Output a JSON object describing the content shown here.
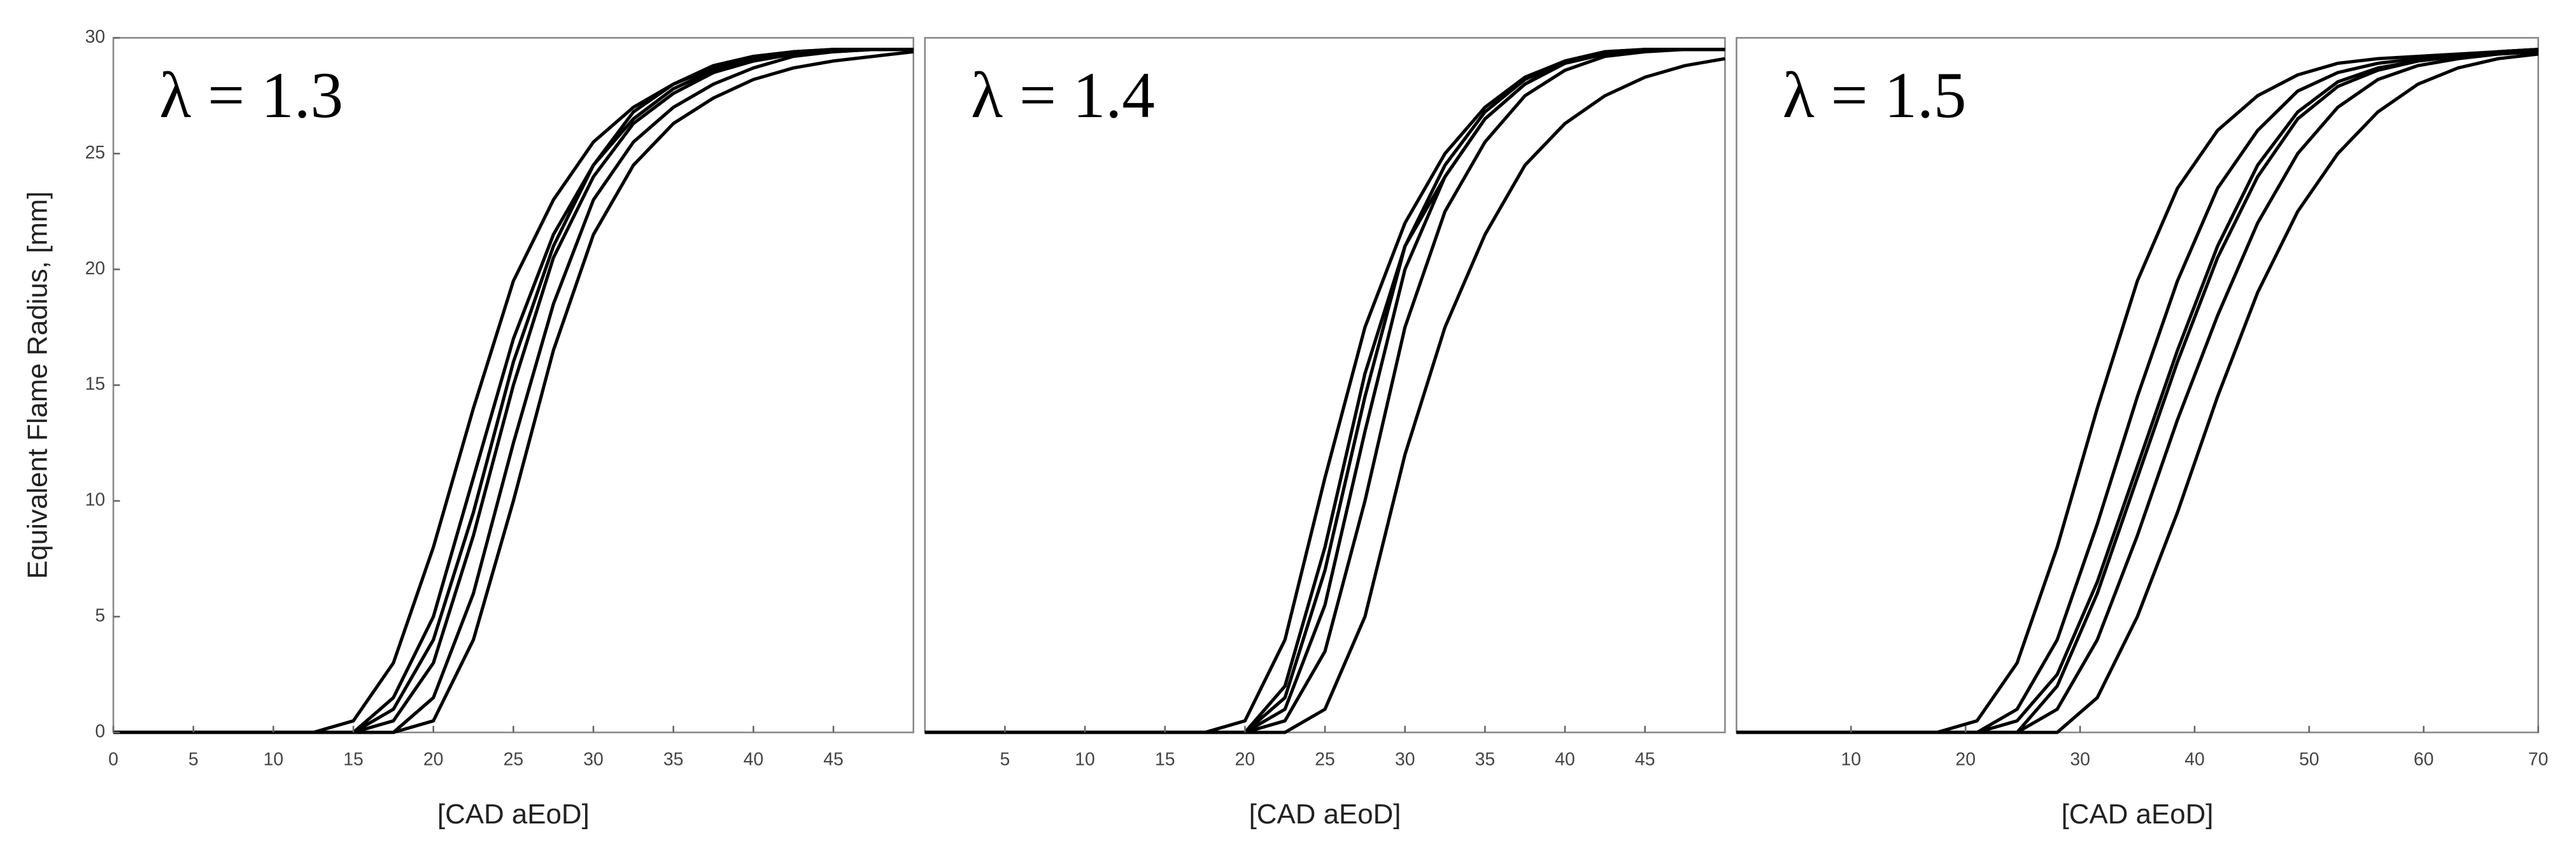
{
  "chart_data": [
    {
      "type": "line",
      "annotation": "λ = 1.3",
      "xlabel": "[CAD aEoD]",
      "ylabel": "Equivalent Flame Radius, [mm]",
      "x": [
        0,
        2.5,
        5,
        7.5,
        10,
        12.5,
        15,
        17.5,
        20,
        22.5,
        25,
        27.5,
        30,
        32.5,
        35,
        37.5,
        40,
        42.5,
        45,
        47.5,
        50
      ],
      "xlim": [
        0,
        50
      ],
      "xticks": [
        0,
        5,
        10,
        15,
        20,
        25,
        30,
        35,
        40,
        45
      ],
      "ylim": [
        0,
        30
      ],
      "yticks": [
        0,
        5,
        10,
        15,
        20,
        25,
        30
      ],
      "grid": false,
      "series": [
        {
          "color": "#000000",
          "values": [
            0,
            0,
            0,
            0,
            0,
            0,
            0.5,
            3,
            8,
            14,
            19.5,
            23,
            25.5,
            27,
            28,
            28.7,
            29.1,
            29.4,
            29.5,
            29.5,
            29.5
          ]
        },
        {
          "color": "#000000",
          "values": [
            0,
            0,
            0,
            0,
            0,
            0,
            0,
            1.5,
            5,
            11,
            17,
            21.5,
            24.5,
            26.5,
            27.8,
            28.6,
            29,
            29.3,
            29.4,
            29.5,
            29.5
          ]
        },
        {
          "color": "#000000",
          "values": [
            0,
            0,
            0,
            0,
            0,
            0,
            0,
            0.5,
            3,
            8.5,
            15,
            20.5,
            24,
            26.3,
            27.6,
            28.5,
            29,
            29.3,
            29.5,
            29.5,
            29.5
          ]
        },
        {
          "color": "#000000",
          "values": [
            0,
            0,
            0,
            0,
            0,
            0,
            0,
            0,
            1.5,
            6,
            12.5,
            18.5,
            23,
            25.5,
            27,
            28,
            28.7,
            29.2,
            29.4,
            29.5,
            29.5
          ]
        },
        {
          "color": "#000000",
          "values": [
            0,
            0,
            0,
            0,
            0,
            0,
            0,
            0,
            0.5,
            4,
            10,
            16.5,
            21.5,
            24.5,
            26.3,
            27.4,
            28.2,
            28.7,
            29,
            29.2,
            29.4
          ]
        },
        {
          "color": "#000000",
          "values": [
            0,
            0,
            0,
            0,
            0,
            0,
            0,
            1,
            4,
            9.5,
            16,
            21,
            24.5,
            26.8,
            28,
            28.8,
            29.2,
            29.4,
            29.5,
            29.5,
            29.5
          ]
        }
      ]
    },
    {
      "type": "line",
      "annotation": "λ = 1.4",
      "xlabel": "[CAD aEoD]",
      "x": [
        0,
        2.5,
        5,
        7.5,
        10,
        12.5,
        15,
        17.5,
        20,
        22.5,
        25,
        27.5,
        30,
        32.5,
        35,
        37.5,
        40,
        42.5,
        45,
        47.5,
        50
      ],
      "xlim": [
        0,
        50
      ],
      "xticks": [
        5,
        10,
        15,
        20,
        25,
        30,
        35,
        40,
        45
      ],
      "ylim": [
        0,
        30
      ],
      "grid": false,
      "series": [
        {
          "color": "#000000",
          "values": [
            0,
            0,
            0,
            0,
            0,
            0,
            0,
            0,
            0.5,
            4,
            11,
            17.5,
            22,
            25,
            27,
            28.3,
            29,
            29.3,
            29.5,
            29.5,
            29.5
          ]
        },
        {
          "color": "#000000",
          "values": [
            0,
            0,
            0,
            0,
            0,
            0,
            0,
            0,
            0,
            2,
            8,
            15.5,
            21,
            24.5,
            26.8,
            28.2,
            29,
            29.4,
            29.5,
            29.5,
            29.5
          ]
        },
        {
          "color": "#000000",
          "values": [
            0,
            0,
            0,
            0,
            0,
            0,
            0,
            0,
            0,
            1,
            5.5,
            13,
            20,
            24,
            26.5,
            28,
            28.9,
            29.3,
            29.5,
            29.5,
            29.5
          ]
        },
        {
          "color": "#000000",
          "values": [
            0,
            0,
            0,
            0,
            0,
            0,
            0,
            0,
            0,
            0.5,
            3.5,
            10,
            17.5,
            22.5,
            25.5,
            27.5,
            28.6,
            29.2,
            29.4,
            29.5,
            29.5
          ]
        },
        {
          "color": "#000000",
          "values": [
            0,
            0,
            0,
            0,
            0,
            0,
            0,
            0,
            0,
            0,
            1,
            5,
            12,
            17.5,
            21.5,
            24.5,
            26.3,
            27.5,
            28.3,
            28.8,
            29.1
          ]
        },
        {
          "color": "#000000",
          "values": [
            0,
            0,
            0,
            0,
            0,
            0,
            0,
            0,
            0,
            1.5,
            7,
            14.5,
            21,
            24,
            26.5,
            28,
            29,
            29.4,
            29.5,
            29.5,
            29.5
          ]
        }
      ]
    },
    {
      "type": "line",
      "annotation": "λ = 1.5",
      "xlabel": "[CAD aEoD]",
      "x": [
        0,
        3.5,
        7,
        10.5,
        14,
        17.5,
        21,
        24.5,
        28,
        31.5,
        35,
        38.5,
        42,
        45.5,
        49,
        52.5,
        56,
        59.5,
        63,
        66.5,
        70
      ],
      "xlim": [
        0,
        70
      ],
      "xticks": [
        10,
        20,
        30,
        40,
        50,
        60,
        70
      ],
      "ylim": [
        0,
        30
      ],
      "grid": false,
      "series": [
        {
          "color": "#000000",
          "values": [
            0,
            0,
            0,
            0,
            0,
            0,
            0.5,
            3,
            8,
            14,
            19.5,
            23.5,
            26,
            27.5,
            28.4,
            28.9,
            29.1,
            29.2,
            29.3,
            29.4,
            29.5
          ]
        },
        {
          "color": "#000000",
          "values": [
            0,
            0,
            0,
            0,
            0,
            0,
            0,
            1,
            4,
            9,
            14.5,
            19.5,
            23.5,
            26,
            27.7,
            28.5,
            28.9,
            29.1,
            29.2,
            29.3,
            29.4
          ]
        },
        {
          "color": "#000000",
          "values": [
            0,
            0,
            0,
            0,
            0,
            0,
            0,
            0.5,
            2.5,
            6.5,
            11.5,
            16.5,
            21,
            24.5,
            26.8,
            28.1,
            28.7,
            29,
            29.2,
            29.4,
            29.5
          ]
        },
        {
          "color": "#000000",
          "values": [
            0,
            0,
            0,
            0,
            0,
            0,
            0,
            0,
            1,
            4,
            8.5,
            13.5,
            18,
            22,
            25,
            27,
            28.2,
            28.8,
            29.1,
            29.3,
            29.4
          ]
        },
        {
          "color": "#000000",
          "values": [
            0,
            0,
            0,
            0,
            0,
            0,
            0,
            0,
            0,
            1.5,
            5,
            9.5,
            14.5,
            19,
            22.5,
            25,
            26.8,
            28,
            28.7,
            29.1,
            29.3
          ]
        },
        {
          "color": "#000000",
          "values": [
            0,
            0,
            0,
            0,
            0,
            0,
            0,
            0,
            2,
            6,
            11,
            16,
            20.5,
            24,
            26.5,
            27.9,
            28.6,
            29,
            29.2,
            29.4,
            29.5
          ]
        }
      ]
    }
  ]
}
